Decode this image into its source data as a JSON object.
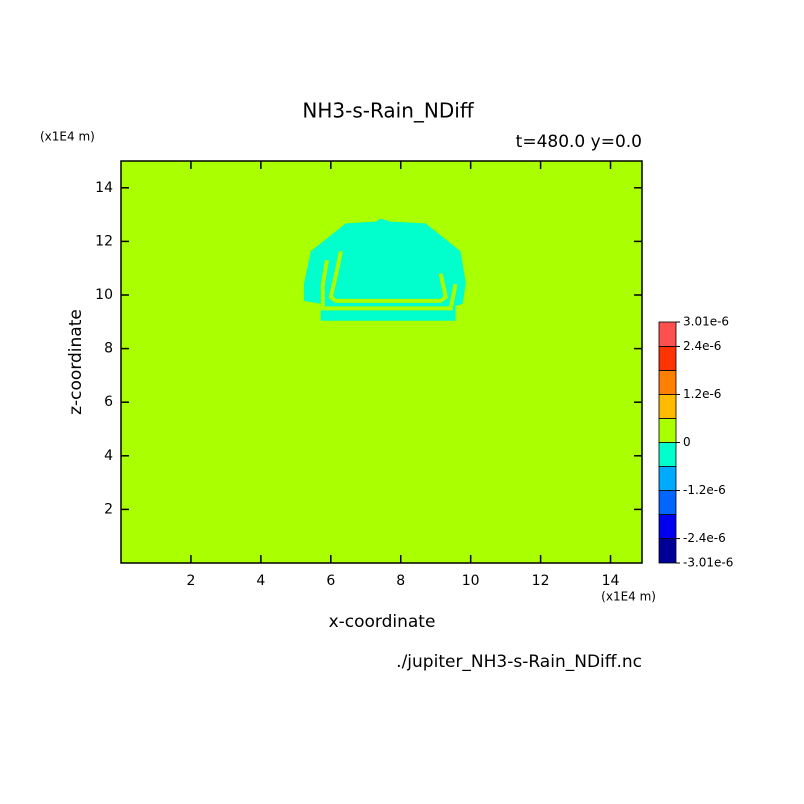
{
  "chart_data": {
    "type": "filled-contour",
    "title": "NH3-s-Rain_NDiff",
    "subtitle": "t=480.0 y=0.0",
    "x_label": "x-coordinate",
    "y_label": "z-coordinate",
    "x_unit": "(x1E4 m)",
    "y_unit": "(x1E4 m)",
    "file_label": "./jupiter_NH3-s-Rain_NDiff.nc",
    "xlim": [
      0,
      14.9
    ],
    "ylim": [
      0,
      15
    ],
    "xticks": [
      2,
      4,
      6,
      8,
      10,
      12,
      14
    ],
    "yticks": [
      2,
      4,
      6,
      8,
      10,
      12,
      14
    ],
    "background_color": "#aaff00",
    "regions": [
      {
        "color": "#00ffcc",
        "style": "fill",
        "x": [
          6.43,
          7.29,
          7.43,
          7.71,
          8.71,
          9.71,
          9.86,
          9.77,
          9.57,
          9.57,
          5.71,
          5.71,
          5.23,
          5.23,
          5.43
        ],
        "z": [
          12.67,
          12.74,
          12.85,
          12.74,
          12.67,
          11.63,
          10.44,
          9.67,
          9.59,
          9.04,
          9.04,
          9.67,
          9.78,
          10.41,
          11.63
        ]
      },
      {
        "color": "#aaff00",
        "style": "line",
        "x": [
          6.29,
          6.14,
          6.0,
          6.14,
          9.14,
          9.29,
          9.14
        ],
        "z": [
          11.63,
          10.7,
          9.93,
          9.78,
          9.78,
          9.93,
          10.8
        ]
      },
      {
        "color": "#aaff00",
        "style": "line",
        "x": [
          5.89,
          5.77,
          5.77,
          9.43,
          9.57
        ],
        "z": [
          11.3,
          10.4,
          9.5,
          9.5,
          10.4
        ]
      }
    ],
    "colorbar": {
      "levels": [
        -3.01e-06,
        -2.4e-06,
        -1.8e-06,
        -1.2e-06,
        -6e-07,
        0,
        6e-07,
        1.2e-06,
        1.8e-06,
        2.4e-06,
        3.01e-06
      ],
      "colors": [
        "#000099",
        "#0000ee",
        "#0066ff",
        "#00aaff",
        "#00ffcc",
        "#aaff00",
        "#ffbb00",
        "#ff8000",
        "#ff3300",
        "#ff5050"
      ],
      "lim": [
        -3.01e-06,
        3.01e-06
      ],
      "ticks": [
        {
          "value": 3.01e-06,
          "label": "3.01e-6"
        },
        {
          "value": 2.4e-06,
          "label": "2.4e-6"
        },
        {
          "value": 1.2e-06,
          "label": "1.2e-6"
        },
        0,
        {
          "value": -1.2e-06,
          "label": "-1.2e-6"
        },
        {
          "value": -2.4e-06,
          "label": "-2.4e-6"
        },
        {
          "value": -3.01e-06,
          "label": "-3.01e-6"
        }
      ]
    }
  }
}
